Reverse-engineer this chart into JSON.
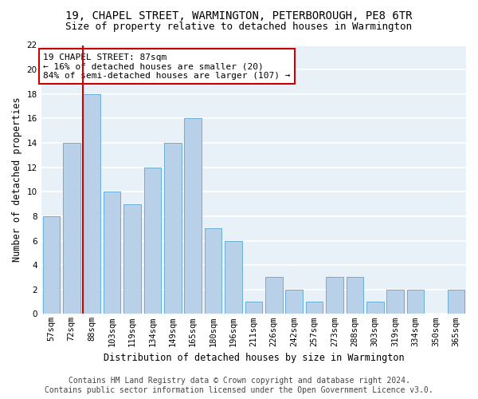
{
  "title1": "19, CHAPEL STREET, WARMINGTON, PETERBOROUGH, PE8 6TR",
  "title2": "Size of property relative to detached houses in Warmington",
  "xlabel": "Distribution of detached houses by size in Warmington",
  "ylabel": "Number of detached properties",
  "categories": [
    "57sqm",
    "72sqm",
    "88sqm",
    "103sqm",
    "119sqm",
    "134sqm",
    "149sqm",
    "165sqm",
    "180sqm",
    "196sqm",
    "211sqm",
    "226sqm",
    "242sqm",
    "257sqm",
    "273sqm",
    "288sqm",
    "303sqm",
    "319sqm",
    "334sqm",
    "350sqm",
    "365sqm"
  ],
  "values": [
    8,
    14,
    18,
    10,
    9,
    12,
    14,
    16,
    7,
    6,
    1,
    3,
    2,
    1,
    3,
    3,
    1,
    2,
    2,
    0,
    2
  ],
  "bar_color": "#b8d0e8",
  "bar_edge_color": "#6aaed6",
  "vline_color": "#cc0000",
  "annotation_text": "19 CHAPEL STREET: 87sqm\n← 16% of detached houses are smaller (20)\n84% of semi-detached houses are larger (107) →",
  "annotation_box_color": "white",
  "annotation_box_edge_color": "#cc0000",
  "ylim": [
    0,
    22
  ],
  "yticks": [
    0,
    2,
    4,
    6,
    8,
    10,
    12,
    14,
    16,
    18,
    20,
    22
  ],
  "footer1": "Contains HM Land Registry data © Crown copyright and database right 2024.",
  "footer2": "Contains public sector information licensed under the Open Government Licence v3.0.",
  "bg_color": "#e8f0f8",
  "grid_color": "#ffffff",
  "title1_fontsize": 10,
  "title2_fontsize": 9,
  "annotation_fontsize": 8,
  "footer_fontsize": 7,
  "tick_fontsize": 7.5,
  "ylabel_fontsize": 8.5,
  "xlabel_fontsize": 8.5
}
